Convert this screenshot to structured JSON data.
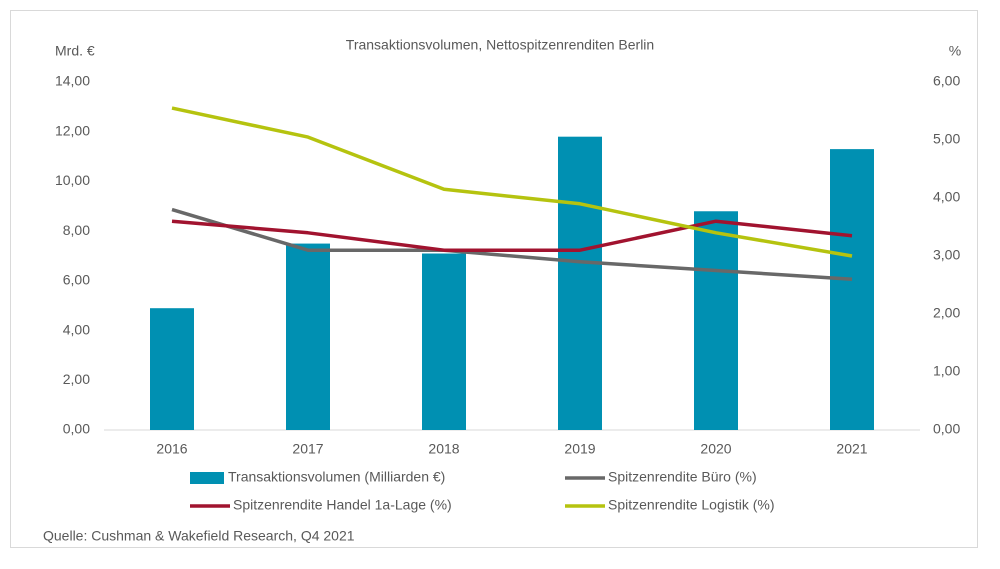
{
  "chart_data": {
    "type": "bar",
    "title": "Transaktionsvolumen, Nettospitzenrenditen Berlin",
    "y_label": "Mrd. €",
    "y2_label": "%",
    "source": "Quelle: Cushman & Wakefield Research, Q4 2021",
    "categories": [
      "2016",
      "2017",
      "2018",
      "2019",
      "2020",
      "2021"
    ],
    "series": [
      {
        "name": "Transaktionsvolumen (Milliarden €)",
        "type": "bar",
        "color": "#0090b2",
        "values": [
          4.9,
          7.5,
          7.1,
          11.8,
          8.8,
          11.3
        ]
      },
      {
        "name": "Spitzenrendite Büro (%)",
        "type": "line",
        "axis": "y2",
        "color": "#686868",
        "values": [
          3.8,
          3.1,
          3.1,
          2.9,
          2.75,
          2.6
        ]
      },
      {
        "name": "Spitzenrendite Handel 1a-Lage (%)",
        "type": "line",
        "axis": "y2",
        "color": "#a1132f",
        "values": [
          3.6,
          3.4,
          3.1,
          3.1,
          3.6,
          3.35
        ]
      },
      {
        "name": "Spitzenrendite Logistik (%)",
        "type": "line",
        "axis": "y2",
        "color": "#b5c30f",
        "values": [
          5.55,
          5.05,
          4.15,
          3.9,
          3.4,
          3.0
        ]
      }
    ],
    "ylim": [
      0,
      14
    ],
    "yticks": [
      {
        "value": 0,
        "label": "0,00"
      },
      {
        "value": 2,
        "label": "2,00"
      },
      {
        "value": 4,
        "label": "4,00"
      },
      {
        "value": 6,
        "label": "6,00"
      },
      {
        "value": 8,
        "label": "8,00"
      },
      {
        "value": 10,
        "label": "10,00"
      },
      {
        "value": 12,
        "label": "12,00"
      },
      {
        "value": 14,
        "label": "14,00"
      }
    ],
    "y2lim": [
      0,
      6
    ],
    "y2ticks": [
      {
        "value": 0,
        "label": "0,00"
      },
      {
        "value": 1,
        "label": "1,00"
      },
      {
        "value": 2,
        "label": "2,00"
      },
      {
        "value": 3,
        "label": "3,00"
      },
      {
        "value": 4,
        "label": "4,00"
      },
      {
        "value": 5,
        "label": "5,00"
      },
      {
        "value": 6,
        "label": "6,00"
      }
    ],
    "grid": false
  }
}
